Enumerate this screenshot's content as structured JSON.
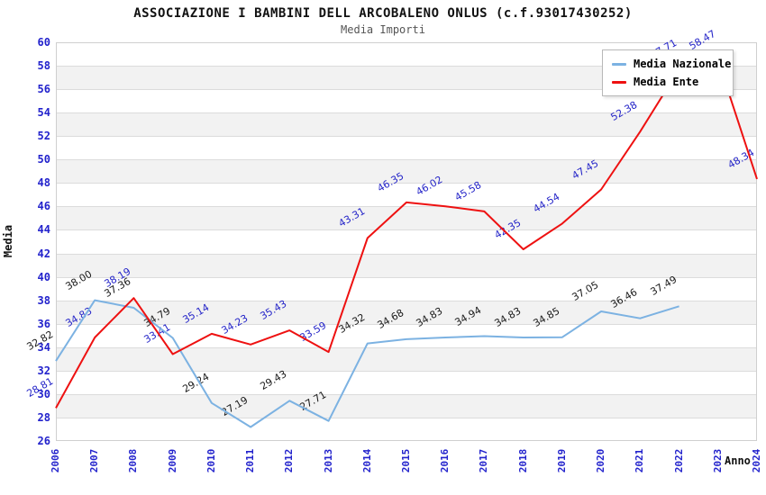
{
  "header": {
    "title": "ASSOCIAZIONE I BAMBINI DELL ARCOBALENO ONLUS (c.f.93017430252)",
    "subtitle": "Media Importi"
  },
  "legend": {
    "items": [
      {
        "label": "Media Nazionale",
        "color": "#7CB2E2"
      },
      {
        "label": "Media Ente",
        "color": "#EE1111"
      }
    ]
  },
  "axes": {
    "x_title": "Anno",
    "y_title": "Media"
  },
  "chart_data": {
    "type": "line",
    "title": "ASSOCIAZIONE I BAMBINI DELL ARCOBALENO ONLUS (c.f.93017430252)",
    "subtitle": "Media Importi",
    "xlabel": "Anno",
    "ylabel": "Media",
    "x": [
      2006,
      2007,
      2008,
      2009,
      2010,
      2011,
      2012,
      2013,
      2014,
      2015,
      2016,
      2017,
      2018,
      2019,
      2020,
      2021,
      2022,
      2023,
      2024
    ],
    "series": [
      {
        "name": "Media Nazionale",
        "color": "#7CB2E2",
        "label_color": "#1a1a1a",
        "values": [
          32.82,
          38.0,
          37.36,
          34.79,
          29.24,
          27.19,
          29.43,
          27.71,
          34.32,
          34.68,
          34.83,
          34.94,
          34.83,
          34.85,
          37.05,
          36.46,
          37.49,
          null,
          null
        ]
      },
      {
        "name": "Media Ente",
        "color": "#EE1111",
        "label_color": "#2424C8",
        "values": [
          28.81,
          34.83,
          38.19,
          33.41,
          35.14,
          34.23,
          35.43,
          33.59,
          43.31,
          46.35,
          46.02,
          45.58,
          42.35,
          44.54,
          47.45,
          52.38,
          57.71,
          58.47,
          48.34
        ]
      }
    ],
    "ylim": [
      26,
      60
    ],
    "ytick_step": 2,
    "grid": true,
    "band_colors": [
      "#ffffff",
      "#f2f2f2"
    ],
    "gridline_color": "#dcdcdc",
    "tick_label_color": "#2222cc",
    "legend_position": "top-right"
  }
}
